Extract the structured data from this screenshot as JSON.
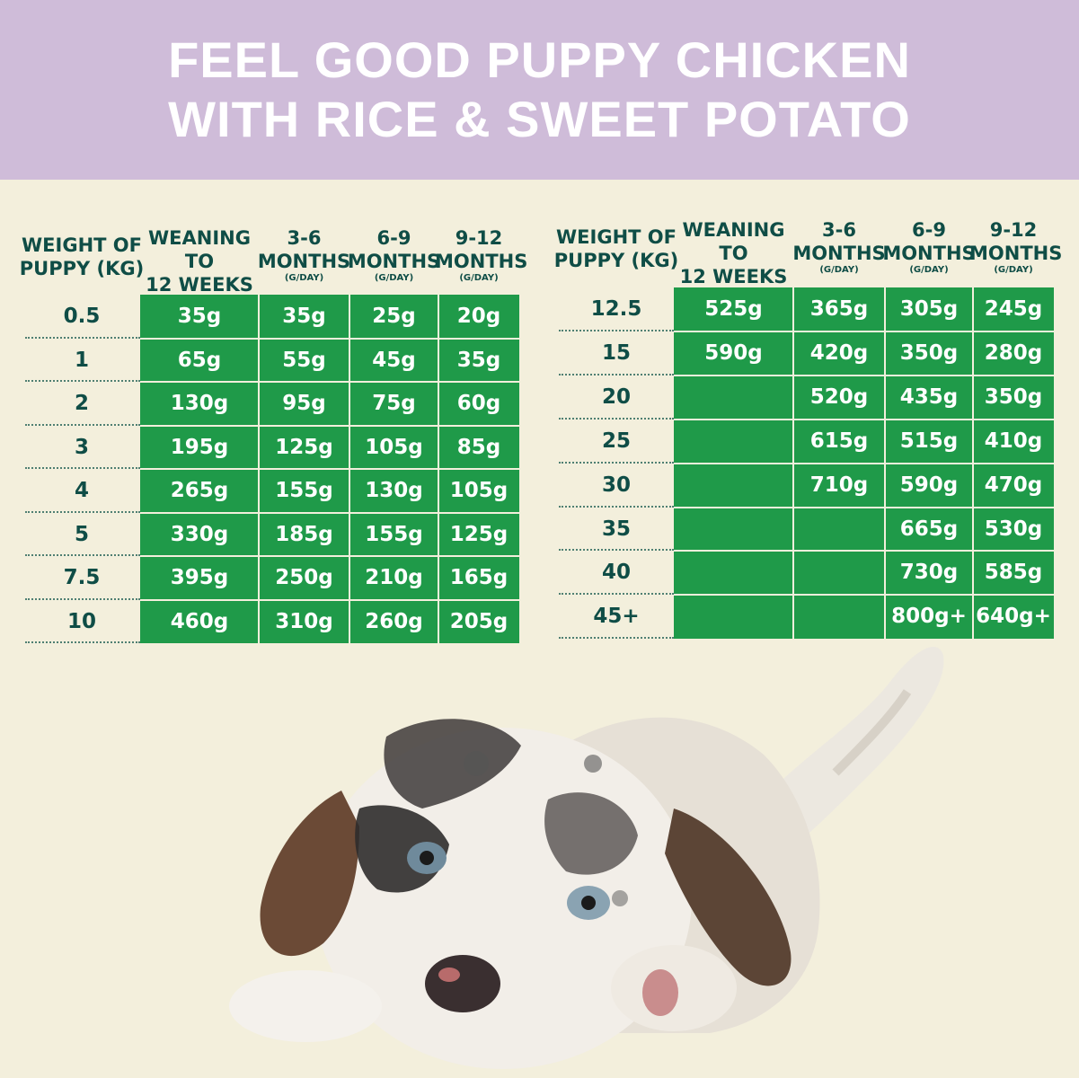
{
  "title": {
    "line1": "FEEL GOOD PUPPY CHICKEN",
    "line2": "WITH RICE & SWEET POTATO"
  },
  "colors": {
    "banner": "#cfbcd9",
    "background": "#f3efdc",
    "table_green": "#1f9a49",
    "header_text": "#0f4d46"
  },
  "headers": {
    "weight_line1": "WEIGHT OF",
    "weight_line2": "PUPPY (KG)",
    "col1_line1": "WEANING TO",
    "col1_line2": "12 WEEKS",
    "col2_line1": "3-6",
    "col2_line2": "MONTHS",
    "col3_line1": "6-9",
    "col3_line2": "MONTHS",
    "col4_line1": "9-12",
    "col4_line2": "MONTHS",
    "unit": "(G/DAY)"
  },
  "left_table": {
    "rows": [
      {
        "weight": "0.5",
        "values": [
          "35g",
          "35g",
          "25g",
          "20g"
        ]
      },
      {
        "weight": "1",
        "values": [
          "65g",
          "55g",
          "45g",
          "35g"
        ]
      },
      {
        "weight": "2",
        "values": [
          "130g",
          "95g",
          "75g",
          "60g"
        ]
      },
      {
        "weight": "3",
        "values": [
          "195g",
          "125g",
          "105g",
          "85g"
        ]
      },
      {
        "weight": "4",
        "values": [
          "265g",
          "155g",
          "130g",
          "105g"
        ]
      },
      {
        "weight": "5",
        "values": [
          "330g",
          "185g",
          "155g",
          "125g"
        ]
      },
      {
        "weight": "7.5",
        "values": [
          "395g",
          "250g",
          "210g",
          "165g"
        ]
      },
      {
        "weight": "10",
        "values": [
          "460g",
          "310g",
          "260g",
          "205g"
        ]
      }
    ]
  },
  "right_table": {
    "rows": [
      {
        "weight": "12.5",
        "values": [
          "525g",
          "365g",
          "305g",
          "245g"
        ]
      },
      {
        "weight": "15",
        "values": [
          "590g",
          "420g",
          "350g",
          "280g"
        ]
      },
      {
        "weight": "20",
        "values": [
          "",
          "520g",
          "435g",
          "350g"
        ]
      },
      {
        "weight": "25",
        "values": [
          "",
          "615g",
          "515g",
          "410g"
        ]
      },
      {
        "weight": "30",
        "values": [
          "",
          "710g",
          "590g",
          "470g"
        ]
      },
      {
        "weight": "35",
        "values": [
          "",
          "",
          "665g",
          "530g"
        ]
      },
      {
        "weight": "40",
        "values": [
          "",
          "",
          "730g",
          "585g"
        ]
      },
      {
        "weight": "45+",
        "values": [
          "",
          "",
          "800g+",
          "640g+"
        ]
      }
    ]
  }
}
